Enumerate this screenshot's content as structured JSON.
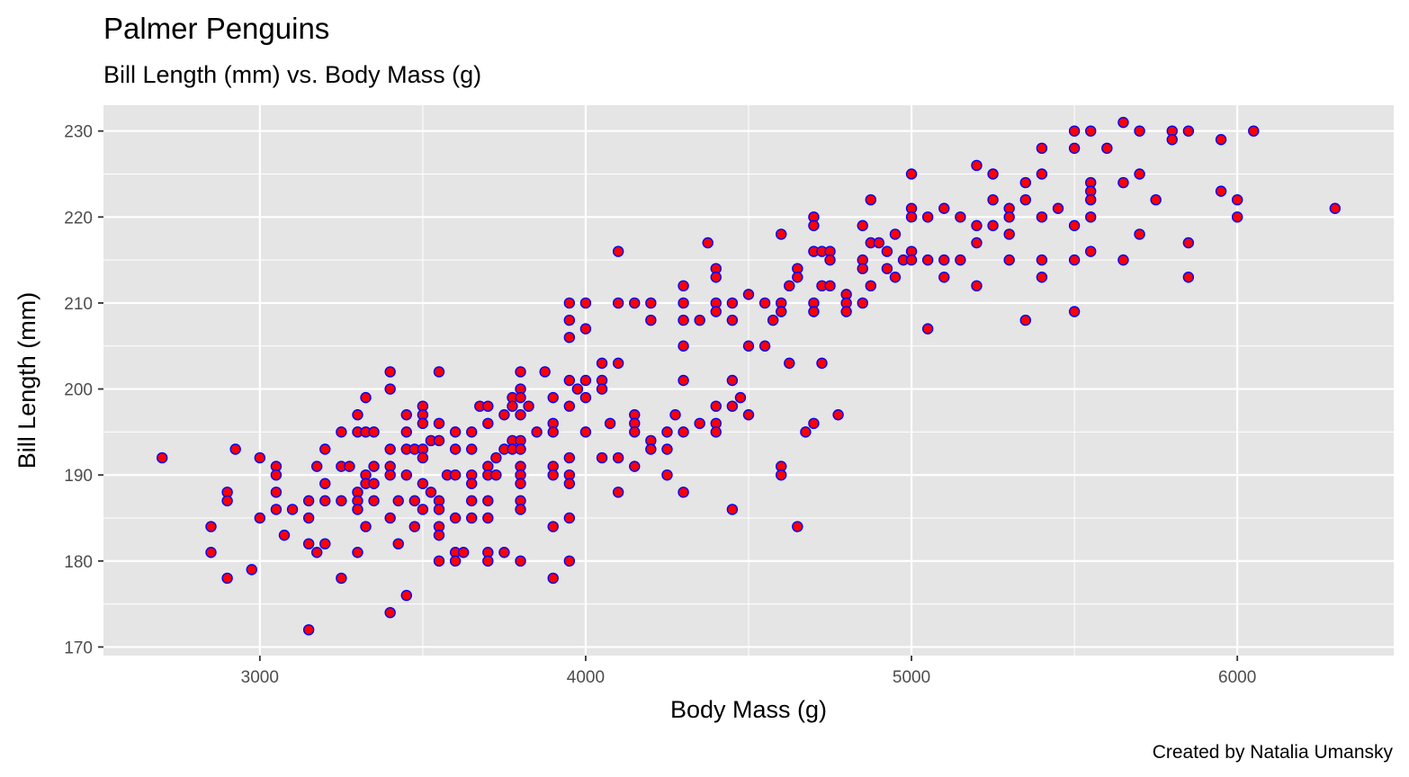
{
  "chart_data": {
    "type": "scatter",
    "title": "Palmer Penguins",
    "subtitle": "Bill Length (mm) vs. Body Mass (g)",
    "xlabel": "Body Mass (g)",
    "ylabel": "Bill Length (mm)",
    "caption": "Created by Natalia Umansky",
    "xlim": [
      2520,
      6480
    ],
    "ylim": [
      169,
      233
    ],
    "x_ticks": [
      3000,
      4000,
      5000,
      6000
    ],
    "y_ticks": [
      170,
      180,
      190,
      200,
      210,
      220,
      230
    ],
    "grid": true,
    "legend": "none",
    "colors": {
      "panel": "#e5e5e5",
      "grid": "#ffffff",
      "point_fill": "#ff0000",
      "point_stroke": "#0000ff",
      "tick_text": "#4d4d4d"
    },
    "points": [
      [
        2700,
        192
      ],
      [
        2850,
        184
      ],
      [
        2850,
        181
      ],
      [
        2900,
        188
      ],
      [
        2900,
        187
      ],
      [
        2900,
        178
      ],
      [
        2925,
        193
      ],
      [
        2975,
        179
      ],
      [
        3000,
        192
      ],
      [
        3000,
        185
      ],
      [
        3050,
        191
      ],
      [
        3050,
        190
      ],
      [
        3050,
        188
      ],
      [
        3050,
        186
      ],
      [
        3075,
        183
      ],
      [
        3100,
        186
      ],
      [
        3150,
        187
      ],
      [
        3150,
        185
      ],
      [
        3150,
        182
      ],
      [
        3150,
        172
      ],
      [
        3175,
        191
      ],
      [
        3175,
        181
      ],
      [
        3200,
        193
      ],
      [
        3200,
        189
      ],
      [
        3200,
        187
      ],
      [
        3200,
        182
      ],
      [
        3250,
        195
      ],
      [
        3250,
        191
      ],
      [
        3250,
        187
      ],
      [
        3250,
        178
      ],
      [
        3275,
        191
      ],
      [
        3300,
        197
      ],
      [
        3300,
        195
      ],
      [
        3300,
        188
      ],
      [
        3300,
        187
      ],
      [
        3300,
        186
      ],
      [
        3300,
        181
      ],
      [
        3325,
        199
      ],
      [
        3325,
        195
      ],
      [
        3325,
        190
      ],
      [
        3325,
        189
      ],
      [
        3325,
        184
      ],
      [
        3350,
        195
      ],
      [
        3350,
        191
      ],
      [
        3350,
        189
      ],
      [
        3350,
        187
      ],
      [
        3400,
        202
      ],
      [
        3400,
        200
      ],
      [
        3400,
        193
      ],
      [
        3400,
        191
      ],
      [
        3400,
        190
      ],
      [
        3400,
        185
      ],
      [
        3400,
        174
      ],
      [
        3425,
        187
      ],
      [
        3425,
        182
      ],
      [
        3450,
        197
      ],
      [
        3450,
        195
      ],
      [
        3450,
        193
      ],
      [
        3450,
        190
      ],
      [
        3450,
        176
      ],
      [
        3475,
        193
      ],
      [
        3475,
        187
      ],
      [
        3475,
        184
      ],
      [
        3500,
        198
      ],
      [
        3500,
        197
      ],
      [
        3500,
        196
      ],
      [
        3500,
        193
      ],
      [
        3500,
        192
      ],
      [
        3500,
        189
      ],
      [
        3500,
        186
      ],
      [
        3525,
        194
      ],
      [
        3525,
        188
      ],
      [
        3550,
        202
      ],
      [
        3550,
        196
      ],
      [
        3550,
        194
      ],
      [
        3550,
        187
      ],
      [
        3550,
        186
      ],
      [
        3550,
        184
      ],
      [
        3550,
        183
      ],
      [
        3550,
        180
      ],
      [
        3575,
        190
      ],
      [
        3600,
        195
      ],
      [
        3600,
        193
      ],
      [
        3600,
        190
      ],
      [
        3600,
        185
      ],
      [
        3600,
        181
      ],
      [
        3600,
        180
      ],
      [
        3625,
        181
      ],
      [
        3650,
        195
      ],
      [
        3650,
        193
      ],
      [
        3650,
        190
      ],
      [
        3650,
        189
      ],
      [
        3650,
        187
      ],
      [
        3650,
        185
      ],
      [
        3675,
        198
      ],
      [
        3700,
        198
      ],
      [
        3700,
        196
      ],
      [
        3700,
        191
      ],
      [
        3700,
        190
      ],
      [
        3700,
        187
      ],
      [
        3700,
        185
      ],
      [
        3700,
        181
      ],
      [
        3700,
        180
      ],
      [
        3725,
        192
      ],
      [
        3725,
        190
      ],
      [
        3750,
        197
      ],
      [
        3750,
        193
      ],
      [
        3750,
        181
      ],
      [
        3775,
        199
      ],
      [
        3775,
        198
      ],
      [
        3775,
        194
      ],
      [
        3775,
        193
      ],
      [
        3800,
        202
      ],
      [
        3800,
        200
      ],
      [
        3800,
        199
      ],
      [
        3800,
        197
      ],
      [
        3800,
        194
      ],
      [
        3800,
        193
      ],
      [
        3800,
        191
      ],
      [
        3800,
        190
      ],
      [
        3800,
        189
      ],
      [
        3800,
        187
      ],
      [
        3800,
        186
      ],
      [
        3800,
        180
      ],
      [
        3825,
        198
      ],
      [
        3850,
        195
      ],
      [
        3875,
        202
      ],
      [
        3900,
        199
      ],
      [
        3900,
        196
      ],
      [
        3900,
        195
      ],
      [
        3900,
        191
      ],
      [
        3900,
        190
      ],
      [
        3900,
        184
      ],
      [
        3900,
        178
      ],
      [
        3950,
        210
      ],
      [
        3950,
        208
      ],
      [
        3950,
        206
      ],
      [
        3950,
        201
      ],
      [
        3950,
        198
      ],
      [
        3950,
        192
      ],
      [
        3950,
        190
      ],
      [
        3950,
        189
      ],
      [
        3950,
        185
      ],
      [
        3950,
        180
      ],
      [
        3975,
        200
      ],
      [
        4000,
        210
      ],
      [
        4000,
        207
      ],
      [
        4000,
        201
      ],
      [
        4000,
        199
      ],
      [
        4000,
        195
      ],
      [
        4050,
        203
      ],
      [
        4050,
        201
      ],
      [
        4050,
        200
      ],
      [
        4050,
        192
      ],
      [
        4075,
        196
      ],
      [
        4100,
        216
      ],
      [
        4100,
        210
      ],
      [
        4100,
        203
      ],
      [
        4100,
        192
      ],
      [
        4100,
        188
      ],
      [
        4150,
        210
      ],
      [
        4150,
        197
      ],
      [
        4150,
        196
      ],
      [
        4150,
        195
      ],
      [
        4150,
        191
      ],
      [
        4200,
        210
      ],
      [
        4200,
        208
      ],
      [
        4200,
        194
      ],
      [
        4200,
        193
      ],
      [
        4250,
        195
      ],
      [
        4250,
        193
      ],
      [
        4250,
        190
      ],
      [
        4275,
        197
      ],
      [
        4300,
        212
      ],
      [
        4300,
        210
      ],
      [
        4300,
        208
      ],
      [
        4300,
        205
      ],
      [
        4300,
        201
      ],
      [
        4300,
        195
      ],
      [
        4300,
        188
      ],
      [
        4350,
        208
      ],
      [
        4350,
        196
      ],
      [
        4375,
        217
      ],
      [
        4400,
        214
      ],
      [
        4400,
        213
      ],
      [
        4400,
        210
      ],
      [
        4400,
        209
      ],
      [
        4400,
        198
      ],
      [
        4400,
        196
      ],
      [
        4400,
        195
      ],
      [
        4450,
        210
      ],
      [
        4450,
        208
      ],
      [
        4450,
        201
      ],
      [
        4450,
        198
      ],
      [
        4450,
        186
      ],
      [
        4475,
        199
      ],
      [
        4500,
        211
      ],
      [
        4500,
        205
      ],
      [
        4500,
        197
      ],
      [
        4550,
        210
      ],
      [
        4550,
        205
      ],
      [
        4575,
        208
      ],
      [
        4600,
        218
      ],
      [
        4600,
        210
      ],
      [
        4600,
        209
      ],
      [
        4600,
        191
      ],
      [
        4600,
        190
      ],
      [
        4625,
        203
      ],
      [
        4625,
        212
      ],
      [
        4650,
        214
      ],
      [
        4650,
        213
      ],
      [
        4650,
        184
      ],
      [
        4675,
        195
      ],
      [
        4700,
        220
      ],
      [
        4700,
        219
      ],
      [
        4700,
        216
      ],
      [
        4700,
        210
      ],
      [
        4700,
        209
      ],
      [
        4700,
        196
      ],
      [
        4725,
        216
      ],
      [
        4725,
        212
      ],
      [
        4725,
        203
      ],
      [
        4750,
        216
      ],
      [
        4750,
        215
      ],
      [
        4750,
        212
      ],
      [
        4775,
        197
      ],
      [
        4800,
        211
      ],
      [
        4800,
        210
      ],
      [
        4800,
        209
      ],
      [
        4850,
        219
      ],
      [
        4850,
        215
      ],
      [
        4850,
        214
      ],
      [
        4850,
        210
      ],
      [
        4875,
        222
      ],
      [
        4875,
        217
      ],
      [
        4875,
        212
      ],
      [
        4900,
        217
      ],
      [
        4925,
        216
      ],
      [
        4925,
        214
      ],
      [
        4950,
        218
      ],
      [
        4950,
        213
      ],
      [
        4975,
        215
      ],
      [
        5000,
        225
      ],
      [
        5000,
        221
      ],
      [
        5000,
        220
      ],
      [
        5000,
        216
      ],
      [
        5000,
        215
      ],
      [
        5050,
        220
      ],
      [
        5050,
        215
      ],
      [
        5050,
        207
      ],
      [
        5100,
        221
      ],
      [
        5100,
        215
      ],
      [
        5100,
        213
      ],
      [
        5150,
        220
      ],
      [
        5150,
        215
      ],
      [
        5200,
        226
      ],
      [
        5200,
        219
      ],
      [
        5200,
        217
      ],
      [
        5200,
        212
      ],
      [
        5250,
        225
      ],
      [
        5250,
        222
      ],
      [
        5250,
        219
      ],
      [
        5300,
        221
      ],
      [
        5300,
        220
      ],
      [
        5300,
        218
      ],
      [
        5300,
        215
      ],
      [
        5350,
        224
      ],
      [
        5350,
        222
      ],
      [
        5350,
        208
      ],
      [
        5400,
        228
      ],
      [
        5400,
        225
      ],
      [
        5400,
        220
      ],
      [
        5400,
        215
      ],
      [
        5400,
        213
      ],
      [
        5450,
        221
      ],
      [
        5500,
        230
      ],
      [
        5500,
        228
      ],
      [
        5500,
        219
      ],
      [
        5500,
        215
      ],
      [
        5500,
        209
      ],
      [
        5550,
        230
      ],
      [
        5550,
        224
      ],
      [
        5550,
        223
      ],
      [
        5550,
        222
      ],
      [
        5550,
        220
      ],
      [
        5550,
        216
      ],
      [
        5600,
        228
      ],
      [
        5650,
        231
      ],
      [
        5650,
        224
      ],
      [
        5650,
        215
      ],
      [
        5700,
        230
      ],
      [
        5700,
        225
      ],
      [
        5700,
        218
      ],
      [
        5750,
        222
      ],
      [
        5800,
        230
      ],
      [
        5800,
        229
      ],
      [
        5850,
        230
      ],
      [
        5850,
        217
      ],
      [
        5850,
        213
      ],
      [
        5950,
        229
      ],
      [
        5950,
        223
      ],
      [
        6000,
        222
      ],
      [
        6000,
        220
      ],
      [
        6050,
        230
      ],
      [
        6300,
        221
      ]
    ]
  }
}
